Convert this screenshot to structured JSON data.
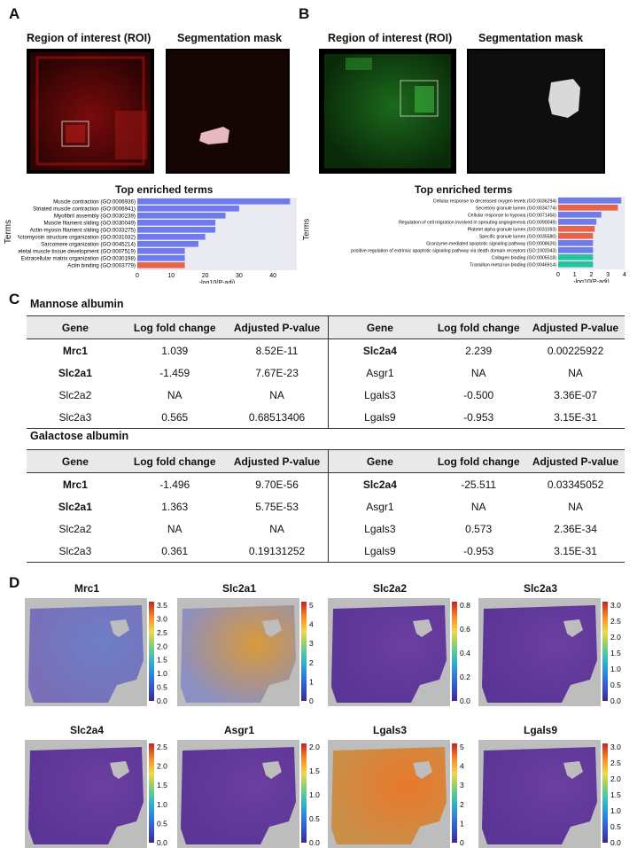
{
  "panels": {
    "A": "A",
    "B": "B",
    "C": "C",
    "D": "D"
  },
  "panel_a": {
    "roi_title": "Region of interest (ROI)",
    "mask_title": "Segmentation mask",
    "chart_title": "Top enriched terms",
    "ylabel": "Terms",
    "xlabel": "-log10(P-adj)"
  },
  "panel_b": {
    "roi_title": "Region of interest (ROI)",
    "mask_title": "Segmentation mask",
    "chart_title": "Top enriched terms",
    "ylabel": "Terms",
    "xlabel": "-log10(P-adj)"
  },
  "colors": {
    "blue": "#6f7bea",
    "red": "#e8634a",
    "teal": "#27c2a0",
    "roi_red": "#d21a1a",
    "roi_green": "#2ea62e"
  },
  "chart_data": [
    {
      "type": "bar",
      "title": "Top enriched terms",
      "xlabel": "-log10(P-adj)",
      "ylabel": "Terms",
      "xlim": [
        0,
        47
      ],
      "xticks": [
        "0",
        "10",
        "20",
        "30",
        "40"
      ],
      "categories": [
        "Muscle contraction (GO:0006936)",
        "Striated muscle contraction (GO:0006941)",
        "Myofibril assembly (GO:0030239)",
        "Muscle filament sliding (GO:0030049)",
        "Actin-myosin filament sliding (GO:0033275)",
        "Actomyosin structure organization (GO:0031032)",
        "Sarcomere organization (GO:0045214)",
        "Skeletal muscle tissue development (GO:0007519)",
        "Extracellular matrix organization (GO:0030198)",
        "Actin binding (GO:0003779)"
      ],
      "values": [
        45,
        30,
        26,
        23,
        23,
        20,
        18,
        14,
        14,
        14
      ],
      "bar_colors": [
        "blue",
        "blue",
        "blue",
        "blue",
        "blue",
        "blue",
        "blue",
        "blue",
        "blue",
        "red"
      ]
    },
    {
      "type": "bar",
      "title": "Top enriched terms",
      "xlabel": "-log10(P-adj)",
      "ylabel": "Terms",
      "xlim": [
        0,
        4
      ],
      "xticks": [
        "0",
        "1",
        "2",
        "3",
        "4"
      ],
      "categories": [
        "Cellular response to decreased oxygen levels (GO:0036294)",
        "Secretory granule lumen (GO:0034774)",
        "Cellular response to hypoxia (GO:0071456)",
        "Regulation of cell migration involved in sprouting angiogenesis (GO:0090049)",
        "Platelet alpha granule lumen (GO:0031093)",
        "Specific granule lumen (GO:0035580)",
        "Granzyme-mediated apoptotic signaling pathway (GO:0008626)",
        "positive regulation of extrinsic apoptotic signaling pathway via death domain receptors (GO:1902043)",
        "Collagen binding (GO:0005518)",
        "Transition metal ion binding (GO:0046914)"
      ],
      "values": [
        3.8,
        3.6,
        2.6,
        2.3,
        2.2,
        2.1,
        2.1,
        2.1,
        2.1,
        2.1
      ],
      "bar_colors": [
        "blue",
        "red",
        "blue",
        "blue",
        "red",
        "red",
        "blue",
        "blue",
        "teal",
        "teal"
      ]
    }
  ],
  "tables": [
    {
      "title": "Mannose albumin",
      "headers": [
        "Gene",
        "Log fold change",
        "Adjusted  P-value",
        "Gene",
        "Log fold change",
        "Adjusted  P-value"
      ],
      "rows": [
        [
          "Mrc1",
          "1.039",
          "8.52E-11",
          "Slc2a4",
          "2.239",
          "0.00225922"
        ],
        [
          "Slc2a1",
          "-1.459",
          "7.67E-23",
          "Asgr1",
          "NA",
          "NA"
        ],
        [
          "Slc2a2",
          "NA",
          "NA",
          "Lgals3",
          "-0.500",
          "3.36E-07"
        ],
        [
          "Slc2a3",
          "0.565",
          "0.68513406",
          "Lgals9",
          "-0.953",
          "3.15E-31"
        ]
      ]
    },
    {
      "title": "Galactose albumin",
      "headers": [
        "Gene",
        "Log fold change",
        "Adjusted  P-value",
        "Gene",
        "Log fold change",
        "Adjusted  P-value"
      ],
      "rows": [
        [
          "Mrc1",
          "-1.496",
          "9.70E-56",
          "Slc2a4",
          "-25.511",
          "0.03345052"
        ],
        [
          "Slc2a1",
          "1.363",
          "5.75E-53",
          "Asgr1",
          "NA",
          "NA"
        ],
        [
          "Slc2a2",
          "NA",
          "NA",
          "Lgals3",
          "0.573",
          "2.36E-34"
        ],
        [
          "Slc2a3",
          "0.361",
          "0.19131252",
          "Lgals9",
          "-0.953",
          "3.15E-31"
        ]
      ]
    }
  ],
  "maps": [
    {
      "gene": "Mrc1",
      "ticks": [
        "3.5",
        "3.0",
        "2.5",
        "2.0",
        "1.5",
        "1.0",
        "0.5",
        "0.0"
      ],
      "level": 0.35
    },
    {
      "gene": "Slc2a1",
      "ticks": [
        "5",
        "4",
        "3",
        "2",
        "1",
        "0"
      ],
      "level": 0.55
    },
    {
      "gene": "Slc2a2",
      "ticks": [
        "0.8",
        "0.6",
        "0.4",
        "0.2",
        "0.0"
      ],
      "level": 0.05
    },
    {
      "gene": "Slc2a3",
      "ticks": [
        "3.0",
        "2.5",
        "2.0",
        "1.5",
        "1.0",
        "0.5",
        "0.0"
      ],
      "level": 0.08
    },
    {
      "gene": "Slc2a4",
      "ticks": [
        "2.5",
        "2.0",
        "1.5",
        "1.0",
        "0.5",
        "0.0"
      ],
      "level": 0.1
    },
    {
      "gene": "Asgr1",
      "ticks": [
        "2.0",
        "1.5",
        "1.0",
        "0.5",
        "0.0"
      ],
      "level": 0.05
    },
    {
      "gene": "Lgals3",
      "ticks": [
        "5",
        "4",
        "3",
        "2",
        "1",
        "0"
      ],
      "level": 0.75
    },
    {
      "gene": "Lgals9",
      "ticks": [
        "3.0",
        "2.5",
        "2.0",
        "1.5",
        "1.0",
        "0.5",
        "0.0"
      ],
      "level": 0.2
    }
  ]
}
